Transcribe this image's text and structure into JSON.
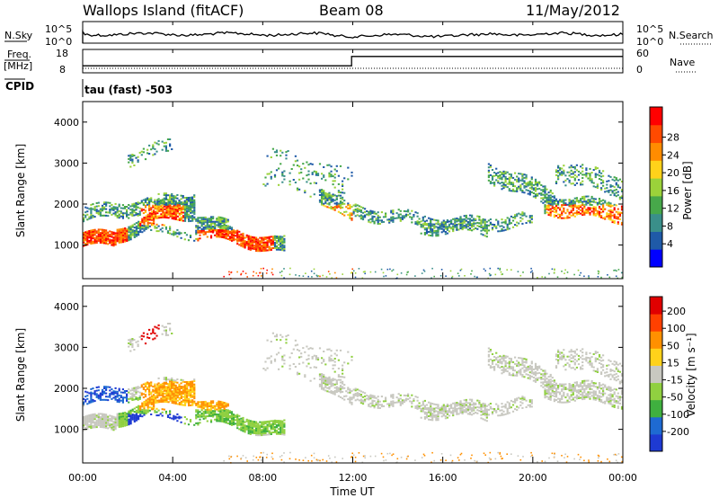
{
  "header": {
    "station": "Wallops Island (fitACF)",
    "beam": "Beam 08",
    "date": "11/May/2012"
  },
  "noise_panel": {
    "left_label": "N.Sky",
    "right_label": "N.Search",
    "left_ticks": [
      "10^5",
      "10^0"
    ],
    "right_ticks": [
      "10^5",
      "10^0"
    ]
  },
  "freq_panel": {
    "left_label_line1": "Freq.",
    "left_label_line2": "[MHz]",
    "right_label": "Nave",
    "left_ticks": [
      "18",
      "8"
    ],
    "right_ticks": [
      "60",
      "0"
    ],
    "freq_levels_mhz": [
      [
        0,
        11.95,
        11
      ],
      [
        11.95,
        24,
        15
      ]
    ],
    "nave_level": 5
  },
  "cpid": {
    "label": "CPID",
    "value": "tau (fast) -503"
  },
  "chart_data": [
    {
      "type": "heatmap",
      "name": "power",
      "ylabel": "Slant Range [km]",
      "ylim": [
        180,
        4500
      ],
      "yticks": [
        "1000",
        "2000",
        "3000",
        "4000"
      ],
      "colorbar_label": "Power [dB]",
      "colorbar_ticks": [
        "4",
        "8",
        "12",
        "16",
        "20",
        "24",
        "28"
      ],
      "colorbar_colors": [
        "#0000ff",
        "#1f5aa8",
        "#3a8f8a",
        "#47a84a",
        "#9bd23a",
        "#ffd21a",
        "#ff8c00",
        "#ff4a00",
        "#ff0000"
      ]
    },
    {
      "type": "heatmap",
      "name": "velocity",
      "ylabel": "Slant Range [km]",
      "ylim": [
        180,
        4500
      ],
      "yticks": [
        "1000",
        "2000",
        "3000",
        "4000"
      ],
      "colorbar_label": "Velocity [m s⁻¹]",
      "colorbar_ticks": [
        "200",
        "100",
        "50",
        "15",
        "-15",
        "-50",
        "-100",
        "-200"
      ],
      "colorbar_colors": [
        "#1e3ad2",
        "#1e6ad2",
        "#3fb03f",
        "#90d040",
        "#c8c8c0",
        "#ffd21a",
        "#ff9000",
        "#ff4000",
        "#e00000"
      ]
    }
  ],
  "xaxis": {
    "label": "Time UT",
    "ticks": [
      "00:00",
      "04:00",
      "08:00",
      "12:00",
      "16:00",
      "20:00",
      "00:00"
    ]
  }
}
